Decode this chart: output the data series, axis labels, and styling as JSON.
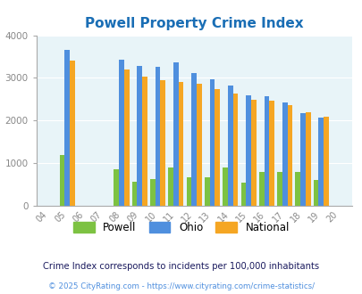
{
  "title": "Powell Property Crime Index",
  "all_years": [
    2004,
    2005,
    2006,
    2007,
    2008,
    2009,
    2010,
    2011,
    2012,
    2013,
    2014,
    2015,
    2016,
    2017,
    2018,
    2019,
    2020
  ],
  "powell": [
    0,
    1200,
    0,
    0,
    850,
    570,
    630,
    890,
    670,
    670,
    890,
    550,
    790,
    800,
    800,
    610,
    0
  ],
  "ohio": [
    0,
    3650,
    0,
    0,
    3430,
    3280,
    3250,
    3360,
    3110,
    2960,
    2820,
    2600,
    2570,
    2430,
    2170,
    2070,
    0
  ],
  "national": [
    0,
    3400,
    0,
    0,
    3200,
    3030,
    2940,
    2910,
    2860,
    2730,
    2630,
    2490,
    2460,
    2360,
    2200,
    2080,
    0
  ],
  "powell_color": "#7dc242",
  "ohio_color": "#4f8fde",
  "national_color": "#f5a623",
  "plot_bg": "#e8f4f8",
  "title_color": "#1a6eb5",
  "ylim": [
    0,
    4000
  ],
  "yticks": [
    0,
    1000,
    2000,
    3000,
    4000
  ],
  "note": "Crime Index corresponds to incidents per 100,000 inhabitants",
  "copyright": "© 2025 CityRating.com - https://www.cityrating.com/crime-statistics/",
  "note_color": "#1a1a5e",
  "copyright_color": "#4f8fde",
  "bar_width": 0.28
}
